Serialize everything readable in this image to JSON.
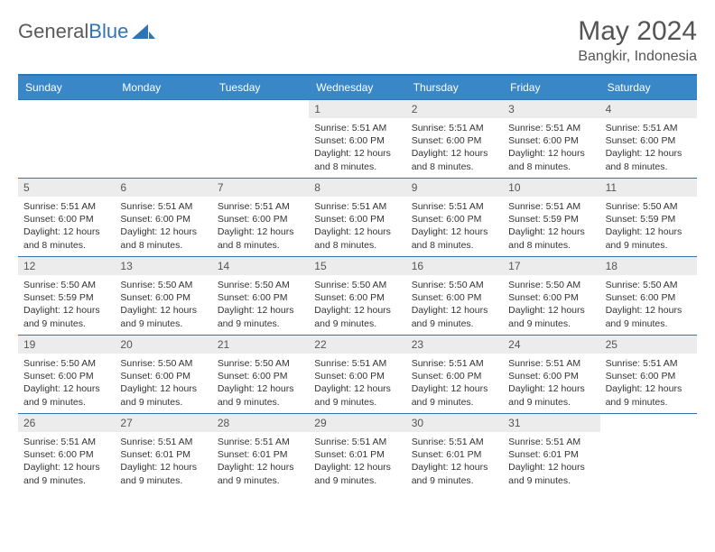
{
  "brand": {
    "part1": "General",
    "part2": "Blue"
  },
  "title": "May 2024",
  "location": "Bangkir, Indonesia",
  "colors": {
    "header_bg": "#3a87c8",
    "border": "#2e75b6",
    "daynum_bg": "#ececec",
    "text": "#333333",
    "muted": "#555555"
  },
  "day_names": [
    "Sunday",
    "Monday",
    "Tuesday",
    "Wednesday",
    "Thursday",
    "Friday",
    "Saturday"
  ],
  "weeks": [
    [
      {
        "n": "",
        "lines": []
      },
      {
        "n": "",
        "lines": []
      },
      {
        "n": "",
        "lines": []
      },
      {
        "n": "1",
        "lines": [
          "Sunrise: 5:51 AM",
          "Sunset: 6:00 PM",
          "Daylight: 12 hours and 8 minutes."
        ]
      },
      {
        "n": "2",
        "lines": [
          "Sunrise: 5:51 AM",
          "Sunset: 6:00 PM",
          "Daylight: 12 hours and 8 minutes."
        ]
      },
      {
        "n": "3",
        "lines": [
          "Sunrise: 5:51 AM",
          "Sunset: 6:00 PM",
          "Daylight: 12 hours and 8 minutes."
        ]
      },
      {
        "n": "4",
        "lines": [
          "Sunrise: 5:51 AM",
          "Sunset: 6:00 PM",
          "Daylight: 12 hours and 8 minutes."
        ]
      }
    ],
    [
      {
        "n": "5",
        "lines": [
          "Sunrise: 5:51 AM",
          "Sunset: 6:00 PM",
          "Daylight: 12 hours and 8 minutes."
        ]
      },
      {
        "n": "6",
        "lines": [
          "Sunrise: 5:51 AM",
          "Sunset: 6:00 PM",
          "Daylight: 12 hours and 8 minutes."
        ]
      },
      {
        "n": "7",
        "lines": [
          "Sunrise: 5:51 AM",
          "Sunset: 6:00 PM",
          "Daylight: 12 hours and 8 minutes."
        ]
      },
      {
        "n": "8",
        "lines": [
          "Sunrise: 5:51 AM",
          "Sunset: 6:00 PM",
          "Daylight: 12 hours and 8 minutes."
        ]
      },
      {
        "n": "9",
        "lines": [
          "Sunrise: 5:51 AM",
          "Sunset: 6:00 PM",
          "Daylight: 12 hours and 8 minutes."
        ]
      },
      {
        "n": "10",
        "lines": [
          "Sunrise: 5:51 AM",
          "Sunset: 5:59 PM",
          "Daylight: 12 hours and 8 minutes."
        ]
      },
      {
        "n": "11",
        "lines": [
          "Sunrise: 5:50 AM",
          "Sunset: 5:59 PM",
          "Daylight: 12 hours and 9 minutes."
        ]
      }
    ],
    [
      {
        "n": "12",
        "lines": [
          "Sunrise: 5:50 AM",
          "Sunset: 5:59 PM",
          "Daylight: 12 hours and 9 minutes."
        ]
      },
      {
        "n": "13",
        "lines": [
          "Sunrise: 5:50 AM",
          "Sunset: 6:00 PM",
          "Daylight: 12 hours and 9 minutes."
        ]
      },
      {
        "n": "14",
        "lines": [
          "Sunrise: 5:50 AM",
          "Sunset: 6:00 PM",
          "Daylight: 12 hours and 9 minutes."
        ]
      },
      {
        "n": "15",
        "lines": [
          "Sunrise: 5:50 AM",
          "Sunset: 6:00 PM",
          "Daylight: 12 hours and 9 minutes."
        ]
      },
      {
        "n": "16",
        "lines": [
          "Sunrise: 5:50 AM",
          "Sunset: 6:00 PM",
          "Daylight: 12 hours and 9 minutes."
        ]
      },
      {
        "n": "17",
        "lines": [
          "Sunrise: 5:50 AM",
          "Sunset: 6:00 PM",
          "Daylight: 12 hours and 9 minutes."
        ]
      },
      {
        "n": "18",
        "lines": [
          "Sunrise: 5:50 AM",
          "Sunset: 6:00 PM",
          "Daylight: 12 hours and 9 minutes."
        ]
      }
    ],
    [
      {
        "n": "19",
        "lines": [
          "Sunrise: 5:50 AM",
          "Sunset: 6:00 PM",
          "Daylight: 12 hours and 9 minutes."
        ]
      },
      {
        "n": "20",
        "lines": [
          "Sunrise: 5:50 AM",
          "Sunset: 6:00 PM",
          "Daylight: 12 hours and 9 minutes."
        ]
      },
      {
        "n": "21",
        "lines": [
          "Sunrise: 5:50 AM",
          "Sunset: 6:00 PM",
          "Daylight: 12 hours and 9 minutes."
        ]
      },
      {
        "n": "22",
        "lines": [
          "Sunrise: 5:51 AM",
          "Sunset: 6:00 PM",
          "Daylight: 12 hours and 9 minutes."
        ]
      },
      {
        "n": "23",
        "lines": [
          "Sunrise: 5:51 AM",
          "Sunset: 6:00 PM",
          "Daylight: 12 hours and 9 minutes."
        ]
      },
      {
        "n": "24",
        "lines": [
          "Sunrise: 5:51 AM",
          "Sunset: 6:00 PM",
          "Daylight: 12 hours and 9 minutes."
        ]
      },
      {
        "n": "25",
        "lines": [
          "Sunrise: 5:51 AM",
          "Sunset: 6:00 PM",
          "Daylight: 12 hours and 9 minutes."
        ]
      }
    ],
    [
      {
        "n": "26",
        "lines": [
          "Sunrise: 5:51 AM",
          "Sunset: 6:00 PM",
          "Daylight: 12 hours and 9 minutes."
        ]
      },
      {
        "n": "27",
        "lines": [
          "Sunrise: 5:51 AM",
          "Sunset: 6:01 PM",
          "Daylight: 12 hours and 9 minutes."
        ]
      },
      {
        "n": "28",
        "lines": [
          "Sunrise: 5:51 AM",
          "Sunset: 6:01 PM",
          "Daylight: 12 hours and 9 minutes."
        ]
      },
      {
        "n": "29",
        "lines": [
          "Sunrise: 5:51 AM",
          "Sunset: 6:01 PM",
          "Daylight: 12 hours and 9 minutes."
        ]
      },
      {
        "n": "30",
        "lines": [
          "Sunrise: 5:51 AM",
          "Sunset: 6:01 PM",
          "Daylight: 12 hours and 9 minutes."
        ]
      },
      {
        "n": "31",
        "lines": [
          "Sunrise: 5:51 AM",
          "Sunset: 6:01 PM",
          "Daylight: 12 hours and 9 minutes."
        ]
      },
      {
        "n": "",
        "lines": []
      }
    ]
  ]
}
